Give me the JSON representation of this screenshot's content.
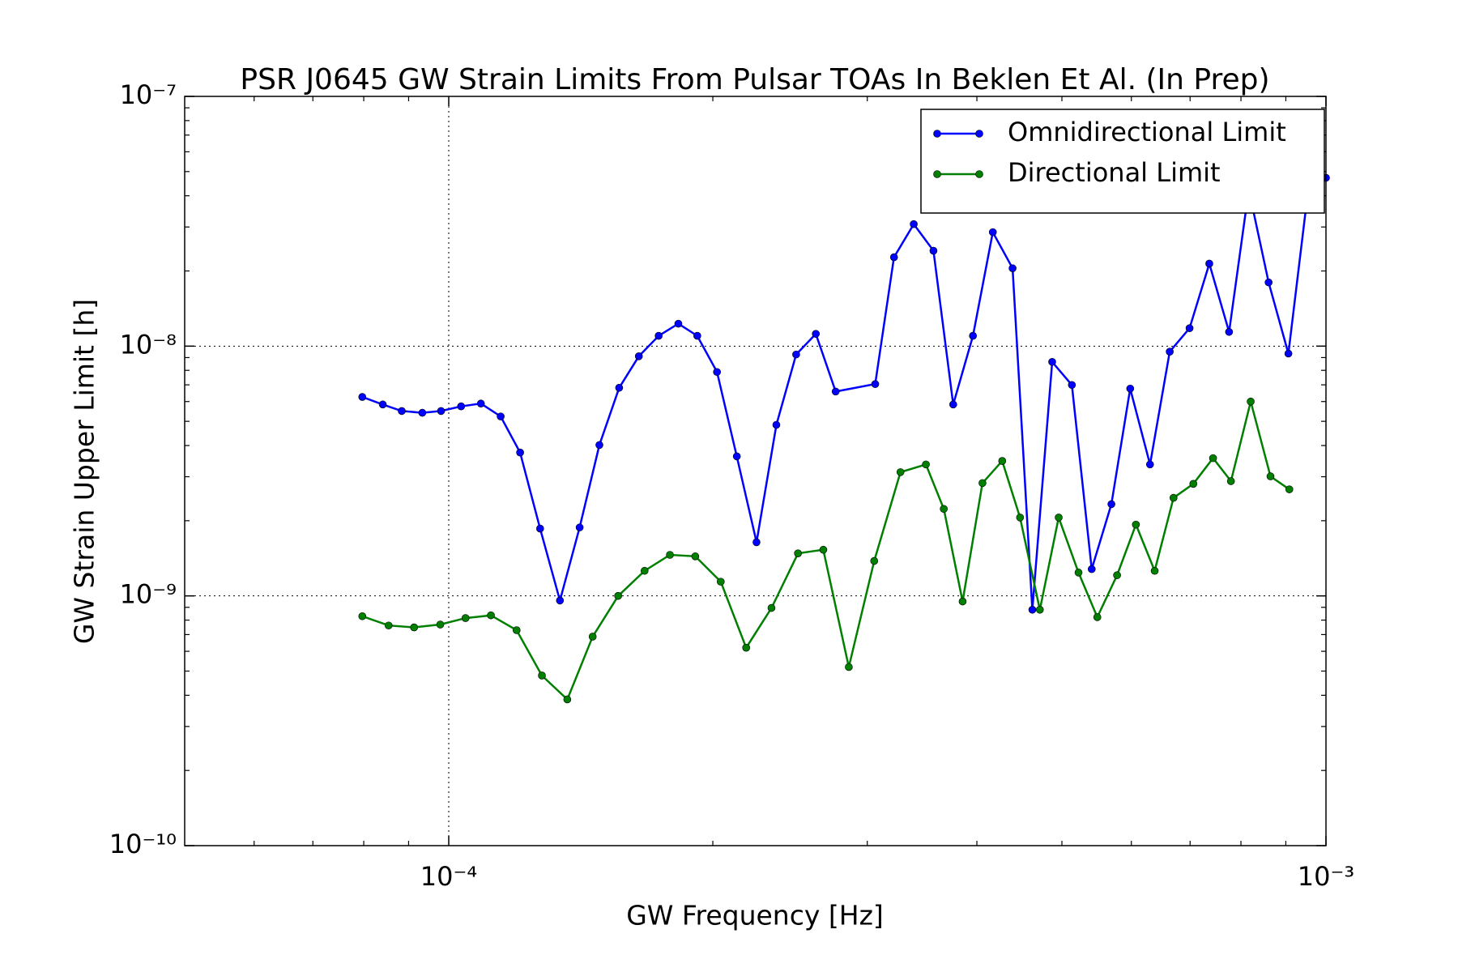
{
  "chart_data": {
    "type": "line",
    "title": "PSR J0645 GW Strain Limits From Pulsar TOAs In Beklen Et Al. (In Prep)",
    "xlabel": "GW Frequency [Hz]",
    "ylabel": "GW Strain Upper Limit [h]",
    "xscale": "log",
    "yscale": "log",
    "xlim": [
      5e-05,
      0.001
    ],
    "ylim": [
      1e-10,
      1e-07
    ],
    "xticks": [
      {
        "value": 0.0001,
        "label": "10⁻⁴"
      },
      {
        "value": 0.001,
        "label": "10⁻³"
      }
    ],
    "yticks": [
      {
        "value": 1e-10,
        "label": "10⁻¹⁰"
      },
      {
        "value": 1e-09,
        "label": "10⁻⁹"
      },
      {
        "value": 1e-08,
        "label": "10⁻⁸"
      },
      {
        "value": 1e-07,
        "label": "10⁻⁷"
      }
    ],
    "minor_ticks": true,
    "grid": true,
    "legend": "upper right",
    "series": [
      {
        "name": "Omnidirectional Limit",
        "color": "#0000ff",
        "x": [
          7.97e-05,
          8.41e-05,
          8.84e-05,
          9.33e-05,
          9.8e-05,
          0.0001033,
          0.0001088,
          0.0001146,
          0.0001206,
          0.0001271,
          0.0001339,
          0.000141,
          0.0001485,
          0.0001564,
          0.0001647,
          0.0001735,
          0.0001827,
          0.000192,
          0.0002022,
          0.000213,
          0.0002243,
          0.0002363,
          0.0002489,
          0.0002621,
          0.0002761,
          0.0003063,
          0.0003218,
          0.0003389,
          0.0003569,
          0.0003759,
          0.0003959,
          0.0004171,
          0.0004393,
          0.0004627,
          0.0004874,
          0.0005133,
          0.0005407,
          0.0005694,
          0.0005982,
          0.0006301,
          0.0006636,
          0.000699,
          0.0007362,
          0.0007754,
          0.0008166,
          0.0008602,
          0.0009061,
          0.0009541,
          0.001
        ],
        "values": [
          6.26e-09,
          5.84e-09,
          5.5e-09,
          5.41e-09,
          5.5e-09,
          5.74e-09,
          5.89e-09,
          5.23e-09,
          3.75e-09,
          1.86e-09,
          9.58e-10,
          1.88e-09,
          4.02e-09,
          6.81e-09,
          9.11e-09,
          1.1e-08,
          1.23e-08,
          1.1e-08,
          7.88e-09,
          3.62e-09,
          1.64e-09,
          4.84e-09,
          9.26e-09,
          1.12e-08,
          6.58e-09,
          7.05e-09,
          2.27e-08,
          3.08e-08,
          2.41e-08,
          5.84e-09,
          1.1e-08,
          2.86e-08,
          2.05e-08,
          8.8e-10,
          8.65e-09,
          6.99e-09,
          1.28e-09,
          2.33e-09,
          6.76e-09,
          3.36e-09,
          9.5e-09,
          1.18e-08,
          2.14e-08,
          1.14e-08,
          4.23e-08,
          1.8e-08,
          9.34e-09,
          4.19e-08,
          4.72e-08
        ]
      },
      {
        "name": "Directional Limit",
        "color": "#007f00",
        "x": [
          7.97e-05,
          8.54e-05,
          9.13e-05,
          9.78e-05,
          0.0001045,
          0.0001117,
          0.0001195,
          0.0001277,
          0.0001365,
          0.0001459,
          0.000156,
          0.0001672,
          0.0001787,
          0.000191,
          0.0002042,
          0.0002183,
          0.0002333,
          0.0002501,
          0.0002673,
          0.0002858,
          0.0003055,
          0.0003273,
          0.0003499,
          0.0003667,
          0.0003853,
          0.0004059,
          0.0004275,
          0.000448,
          0.0004719,
          0.0004958,
          0.0005223,
          0.0005487,
          0.0005779,
          0.0006072,
          0.0006379,
          0.0006702,
          0.000706,
          0.0007435,
          0.0007792,
          0.0008207,
          0.0008645,
          0.0009083
        ],
        "values": [
          8.29e-10,
          7.61e-10,
          7.48e-10,
          7.68e-10,
          8.15e-10,
          8.36e-10,
          7.29e-10,
          4.8e-10,
          3.85e-10,
          6.87e-10,
          1e-09,
          1.26e-09,
          1.46e-09,
          1.44e-09,
          1.14e-09,
          6.2e-10,
          8.95e-10,
          1.48e-09,
          1.53e-09,
          5.19e-10,
          1.38e-09,
          3.13e-09,
          3.36e-09,
          2.23e-09,
          9.5e-10,
          2.83e-09,
          3.47e-09,
          2.06e-09,
          8.8e-10,
          2.06e-09,
          1.24e-09,
          8.22e-10,
          1.21e-09,
          1.93e-09,
          1.26e-09,
          2.47e-09,
          2.81e-09,
          3.56e-09,
          2.88e-09,
          6e-09,
          3.01e-09,
          2.67e-09
        ]
      }
    ]
  }
}
